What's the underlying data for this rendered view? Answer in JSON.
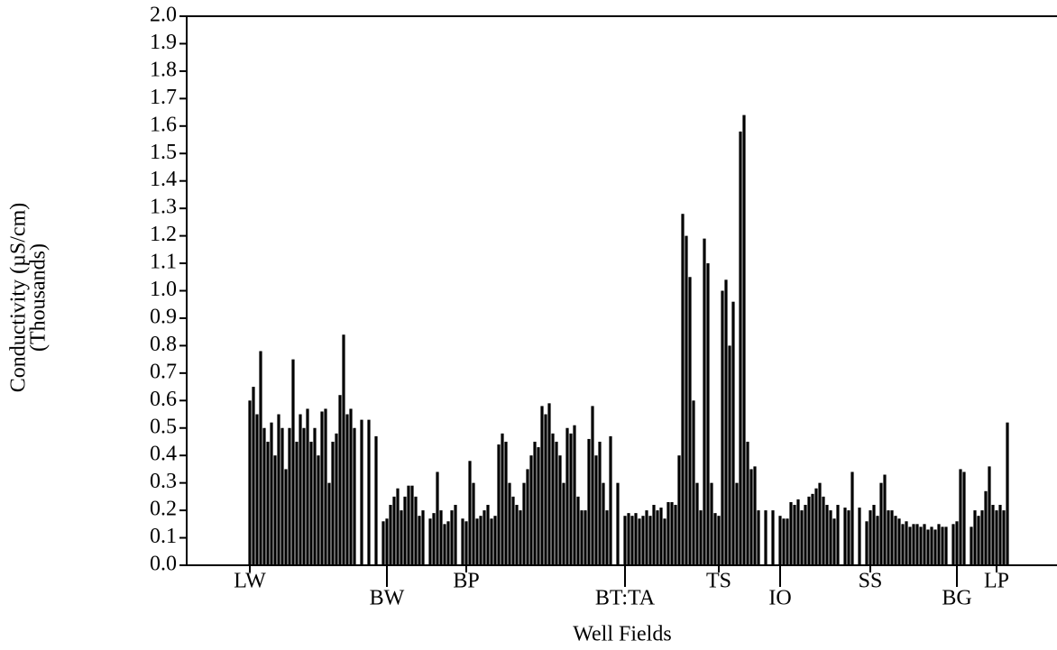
{
  "chart_data": {
    "type": "bar",
    "y_label": [
      "Conductivity (µS/cm)",
      "(Thousands)"
    ],
    "x_label": "Well Fields",
    "color": "#000000",
    "ylim": [
      0,
      2.0
    ],
    "yticks": [
      {
        "value": 0,
        "label": "0.0"
      },
      0.1,
      0.2,
      0.3,
      0.4,
      0.5,
      0.6,
      0.7,
      0.8,
      0.9,
      {
        "value": 1,
        "label": "1.0"
      },
      1.1,
      1.2,
      1.3,
      1.4,
      1.5,
      1.6,
      1.7,
      1.8,
      1.9,
      {
        "value": 2,
        "label": "2.0"
      }
    ],
    "categories": [
      null,
      null,
      null,
      null,
      null,
      null,
      null,
      null,
      null,
      null,
      null,
      null,
      null,
      null,
      null,
      null,
      null,
      "LW",
      null,
      null,
      null,
      null,
      null,
      null,
      null,
      null,
      null,
      null,
      null,
      null,
      null,
      null,
      null,
      null,
      null,
      null,
      null,
      null,
      null,
      null,
      null,
      null,
      null,
      null,
      null,
      null,
      null,
      null,
      null,
      null,
      null,
      null,
      null,
      null,
      null,
      "BW",
      null,
      null,
      null,
      null,
      null,
      null,
      null,
      null,
      null,
      null,
      null,
      null,
      null,
      null,
      null,
      null,
      null,
      null,
      null,
      null,
      null,
      "BP",
      null,
      null,
      null,
      null,
      null,
      null,
      null,
      null,
      null,
      null,
      null,
      null,
      null,
      null,
      null,
      null,
      null,
      null,
      null,
      null,
      null,
      null,
      null,
      null,
      null,
      null,
      null,
      null,
      null,
      null,
      null,
      null,
      null,
      null,
      null,
      null,
      null,
      null,
      null,
      null,
      null,
      null,
      null,
      "BT:TA",
      null,
      null,
      null,
      null,
      null,
      null,
      null,
      null,
      null,
      null,
      null,
      null,
      null,
      null,
      null,
      null,
      null,
      null,
      null,
      null,
      null,
      null,
      null,
      null,
      null,
      "TS",
      null,
      null,
      null,
      null,
      null,
      null,
      null,
      null,
      null,
      null,
      null,
      null,
      null,
      null,
      null,
      null,
      "IO",
      null,
      null,
      null,
      null,
      null,
      null,
      null,
      null,
      null,
      null,
      null,
      null,
      null,
      null,
      null,
      null,
      null,
      null,
      null,
      null,
      null,
      null,
      null,
      null,
      "SS",
      null,
      null,
      null,
      null,
      null,
      null,
      null,
      null,
      null,
      null,
      null,
      null,
      null,
      null,
      null,
      null,
      null,
      null,
      null,
      null,
      null,
      null,
      null,
      "BG",
      null,
      null,
      null,
      null,
      null,
      null,
      null,
      null,
      null,
      null,
      "LP",
      null,
      null,
      null,
      null,
      null,
      null,
      null,
      null,
      null,
      null,
      null,
      null,
      null,
      null,
      null,
      null
    ],
    "values": [
      null,
      null,
      null,
      null,
      null,
      null,
      null,
      null,
      null,
      null,
      null,
      null,
      null,
      null,
      null,
      null,
      null,
      0.6,
      0.65,
      0.55,
      0.78,
      0.5,
      0.45,
      0.52,
      0.4,
      0.55,
      0.5,
      0.35,
      0.5,
      0.75,
      0.45,
      0.55,
      0.5,
      0.57,
      0.45,
      0.5,
      0.4,
      0.56,
      0.57,
      0.3,
      0.45,
      0.48,
      0.62,
      0.84,
      0.55,
      0.57,
      0.5,
      null,
      0.53,
      null,
      0.53,
      null,
      0.47,
      null,
      0.16,
      0.17,
      0.22,
      0.25,
      0.28,
      0.2,
      0.25,
      0.29,
      0.29,
      0.25,
      0.18,
      0.2,
      null,
      0.17,
      0.19,
      0.34,
      0.2,
      0.15,
      0.16,
      0.2,
      0.22,
      null,
      0.17,
      0.16,
      0.38,
      0.3,
      0.17,
      0.18,
      0.2,
      0.22,
      0.17,
      0.18,
      0.44,
      0.48,
      0.45,
      0.3,
      0.25,
      0.22,
      0.2,
      0.3,
      0.35,
      0.4,
      0.45,
      0.43,
      0.58,
      0.55,
      0.59,
      0.48,
      0.45,
      0.4,
      0.3,
      0.5,
      0.48,
      0.51,
      0.25,
      0.2,
      0.2,
      0.46,
      0.58,
      0.4,
      0.45,
      0.3,
      0.2,
      0.47,
      null,
      0.3,
      null,
      0.18,
      0.19,
      0.18,
      0.19,
      0.17,
      0.18,
      0.2,
      0.18,
      0.22,
      0.2,
      0.21,
      0.17,
      0.23,
      0.23,
      0.22,
      0.4,
      1.28,
      1.2,
      1.05,
      0.6,
      0.3,
      0.2,
      1.19,
      1.1,
      0.3,
      0.19,
      0.18,
      1.0,
      1.04,
      0.8,
      0.96,
      0.3,
      1.58,
      1.64,
      0.45,
      0.35,
      0.36,
      0.2,
      null,
      0.2,
      null,
      0.2,
      null,
      0.18,
      0.17,
      0.17,
      0.23,
      0.22,
      0.24,
      0.2,
      0.22,
      0.25,
      0.26,
      0.28,
      0.3,
      0.25,
      0.22,
      0.2,
      0.17,
      0.22,
      null,
      0.21,
      0.2,
      0.34,
      null,
      0.21,
      null,
      0.16,
      0.2,
      0.22,
      0.18,
      0.3,
      0.33,
      0.2,
      0.2,
      0.18,
      0.17,
      0.15,
      0.16,
      0.14,
      0.15,
      0.15,
      0.14,
      0.15,
      0.13,
      0.14,
      0.13,
      0.15,
      0.14,
      0.14,
      null,
      0.15,
      0.16,
      0.35,
      0.34,
      null,
      0.14,
      0.2,
      0.18,
      0.2,
      0.27,
      0.36,
      0.22,
      0.2,
      0.22,
      0.2,
      0.52,
      null,
      null,
      null,
      null,
      null,
      null,
      null,
      null,
      null,
      null,
      null,
      null,
      null
    ]
  }
}
